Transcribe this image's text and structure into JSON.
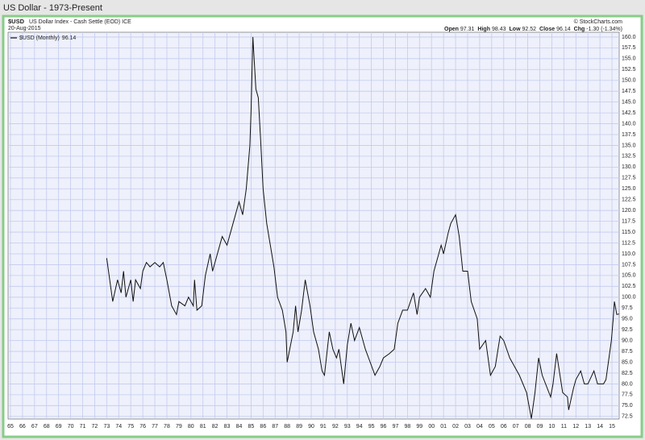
{
  "chart_data": {
    "type": "line",
    "title": "US Dollar - 1973-Present",
    "symbol": "$USD",
    "description": "US Dollar Index - Cash Settle (EOD) ICE",
    "date": "20-Aug-2015",
    "source": "© StockCharts.com",
    "quote": [
      {
        "label": "Open",
        "value": "97.31"
      },
      {
        "label": "High",
        "value": "98.43"
      },
      {
        "label": "Low",
        "value": "92.52"
      },
      {
        "label": "Close",
        "value": "96.14"
      },
      {
        "label": "Chg",
        "value": "-1.30 (-1.34%)"
      }
    ],
    "last_value": 96.14,
    "grid": true,
    "x": [
      1973.0,
      1973.5,
      1973.9,
      1974.2,
      1974.4,
      1974.6,
      1975.0,
      1975.2,
      1975.4,
      1975.8,
      1976.0,
      1976.3,
      1976.6,
      1977.0,
      1977.4,
      1977.7,
      1978.0,
      1978.4,
      1978.8,
      1979.0,
      1979.5,
      1979.8,
      1980.2,
      1980.3,
      1980.5,
      1980.9,
      1981.2,
      1981.6,
      1981.8,
      1982.2,
      1982.6,
      1983.0,
      1983.5,
      1983.8,
      1984.0,
      1984.3,
      1984.6,
      1984.9,
      1985.0,
      1985.15,
      1985.4,
      1985.6,
      1985.8,
      1986.0,
      1986.3,
      1986.6,
      1986.9,
      1987.2,
      1987.6,
      1987.9,
      1988.0,
      1988.5,
      1988.7,
      1988.9,
      1989.2,
      1989.5,
      1989.9,
      1990.2,
      1990.6,
      1990.9,
      1991.1,
      1991.5,
      1991.8,
      1992.1,
      1992.3,
      1992.7,
      1993.0,
      1993.3,
      1993.6,
      1994.0,
      1994.5,
      1994.9,
      1995.3,
      1995.7,
      1996.0,
      1996.5,
      1996.9,
      1997.2,
      1997.6,
      1998.0,
      1998.5,
      1998.8,
      1999.0,
      1999.5,
      1999.9,
      2000.2,
      2000.8,
      2001.0,
      2001.4,
      2001.6,
      2002.0,
      2002.3,
      2002.6,
      2003.0,
      2003.3,
      2003.8,
      2004.0,
      2004.5,
      2004.9,
      2005.3,
      2005.7,
      2006.0,
      2006.5,
      2006.9,
      2007.3,
      2007.9,
      2008.3,
      2008.6,
      2008.9,
      2009.2,
      2009.9,
      2010.1,
      2010.4,
      2010.9,
      2011.3,
      2011.4,
      2011.8,
      2012.0,
      2012.4,
      2012.7,
      2013.0,
      2013.5,
      2013.8,
      2014.3,
      2014.5,
      2014.8,
      2014.95,
      2015.1,
      2015.2,
      2015.4,
      2015.6
    ],
    "series": [
      {
        "name": "$USD (Monthly)",
        "color": "#111111",
        "values": [
          109,
          99,
          104,
          101,
          106,
          100,
          104,
          99,
          104,
          102,
          106,
          108,
          107,
          108,
          107,
          108,
          104,
          98,
          96,
          99,
          98,
          100,
          98,
          104,
          97,
          98,
          105,
          110,
          106,
          110,
          114,
          112,
          117,
          120,
          122,
          119,
          125,
          135,
          143,
          160,
          148,
          146,
          136,
          125,
          117,
          112,
          107,
          100,
          97,
          92,
          85,
          92,
          98,
          92,
          97,
          104,
          98,
          92,
          88,
          83,
          82,
          92,
          88,
          86,
          88,
          80,
          89,
          94,
          90,
          93,
          88,
          85,
          82,
          84,
          86,
          87,
          88,
          94,
          97,
          97,
          101,
          96,
          100,
          102,
          100,
          106,
          112,
          110,
          115,
          117,
          119,
          114,
          106,
          106,
          99,
          95,
          88,
          90,
          82,
          84,
          91,
          90,
          86,
          84,
          82,
          78,
          72,
          78,
          86,
          82,
          77,
          80,
          87,
          78,
          77,
          74,
          79,
          81,
          83,
          80,
          80,
          83,
          80,
          80,
          81,
          87,
          90,
          95,
          99,
          96,
          96.14
        ]
      }
    ],
    "xlim": [
      1964.8,
      2015.6
    ],
    "ylim": [
      71.9,
      161.1
    ],
    "xticks": [
      {
        "value": 1965,
        "label": "65"
      },
      {
        "value": 1966,
        "label": "66"
      },
      {
        "value": 1967,
        "label": "67"
      },
      {
        "value": 1968,
        "label": "68"
      },
      {
        "value": 1969,
        "label": "69"
      },
      {
        "value": 1970,
        "label": "70"
      },
      {
        "value": 1971,
        "label": "71"
      },
      {
        "value": 1972,
        "label": "72"
      },
      {
        "value": 1973,
        "label": "73"
      },
      {
        "value": 1974,
        "label": "74"
      },
      {
        "value": 1975,
        "label": "75"
      },
      {
        "value": 1976,
        "label": "76"
      },
      {
        "value": 1977,
        "label": "77"
      },
      {
        "value": 1978,
        "label": "78"
      },
      {
        "value": 1979,
        "label": "79"
      },
      {
        "value": 1980,
        "label": "80"
      },
      {
        "value": 1981,
        "label": "81"
      },
      {
        "value": 1982,
        "label": "82"
      },
      {
        "value": 1983,
        "label": "83"
      },
      {
        "value": 1984,
        "label": "84"
      },
      {
        "value": 1985,
        "label": "85"
      },
      {
        "value": 1986,
        "label": "86"
      },
      {
        "value": 1987,
        "label": "87"
      },
      {
        "value": 1988,
        "label": "88"
      },
      {
        "value": 1989,
        "label": "89"
      },
      {
        "value": 1990,
        "label": "90"
      },
      {
        "value": 1991,
        "label": "91"
      },
      {
        "value": 1992,
        "label": "92"
      },
      {
        "value": 1993,
        "label": "93"
      },
      {
        "value": 1994,
        "label": "94"
      },
      {
        "value": 1995,
        "label": "95"
      },
      {
        "value": 1996,
        "label": "96"
      },
      {
        "value": 1997,
        "label": "97"
      },
      {
        "value": 1998,
        "label": "98"
      },
      {
        "value": 1999,
        "label": "99"
      },
      {
        "value": 2000,
        "label": "00"
      },
      {
        "value": 2001,
        "label": "01"
      },
      {
        "value": 2002,
        "label": "02"
      },
      {
        "value": 2003,
        "label": "03"
      },
      {
        "value": 2004,
        "label": "04"
      },
      {
        "value": 2005,
        "label": "05"
      },
      {
        "value": 2006,
        "label": "06"
      },
      {
        "value": 2007,
        "label": "07"
      },
      {
        "value": 2008,
        "label": "08"
      },
      {
        "value": 2009,
        "label": "09"
      },
      {
        "value": 2010,
        "label": "10"
      },
      {
        "value": 2011,
        "label": "11"
      },
      {
        "value": 2012,
        "label": "12"
      },
      {
        "value": 2013,
        "label": "13"
      },
      {
        "value": 2014,
        "label": "14"
      },
      {
        "value": 2015,
        "label": "15"
      }
    ],
    "yticks": [
      {
        "value": 160,
        "label": "160.0"
      },
      157.5,
      {
        "value": 155,
        "label": "155.0"
      },
      152.5,
      {
        "value": 150,
        "label": "150.0"
      },
      147.5,
      {
        "value": 145,
        "label": "145.0"
      },
      142.5,
      {
        "value": 140,
        "label": "140.0"
      },
      137.5,
      {
        "value": 135,
        "label": "135.0"
      },
      132.5,
      {
        "value": 130,
        "label": "130.0"
      },
      127.5,
      {
        "value": 125,
        "label": "125.0"
      },
      122.5,
      {
        "value": 120,
        "label": "120.0"
      },
      117.5,
      {
        "value": 115,
        "label": "115.0"
      },
      112.5,
      {
        "value": 110,
        "label": "110.0"
      },
      107.5,
      {
        "value": 105,
        "label": "105.0"
      },
      102.5,
      {
        "value": 100,
        "label": "100.0"
      },
      97.5,
      {
        "value": 95,
        "label": "95.0"
      },
      92.5,
      {
        "value": 90,
        "label": "90.0"
      },
      87.5,
      {
        "value": 85,
        "label": "85.0"
      },
      82.5,
      {
        "value": 80,
        "label": "80.0"
      },
      77.5,
      {
        "value": 75,
        "label": "75.0"
      },
      72.5
    ]
  }
}
